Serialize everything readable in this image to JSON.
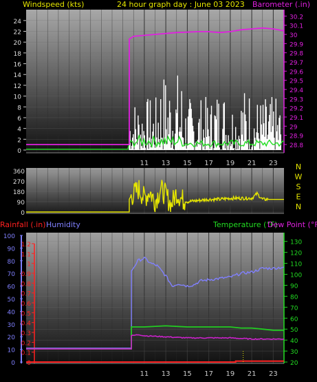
{
  "header": {
    "left": "Windspeed (kts)",
    "center": "24 hour graph day : June 03 2023",
    "right": "Barometer (.in)"
  },
  "mid_header": {
    "left1": "Rainfall (.in)",
    "left2": "Humidity",
    "right1": "Temperature (°F)",
    "right2": "Dew Point (°F)"
  },
  "colors": {
    "wind": "#ffffff",
    "gust_green": "#22dd22",
    "barometer": "#e020e0",
    "direction": "#e6e600",
    "humidity": "#8080ff",
    "temperature": "#22cc22",
    "dewpoint": "#cc22cc",
    "rain": "#ff2020",
    "header_yellow": "#e6e600",
    "header_magenta": "#e020e0",
    "axis_green": "#22dd22"
  },
  "chart_data": [
    {
      "type": "line",
      "name": "wind-barometer",
      "x_ticks": [
        "11",
        "13",
        "15",
        "17",
        "19",
        "21",
        "23"
      ],
      "y_left_ticks": [
        "0",
        "2",
        "4",
        "6",
        "8",
        "10",
        "12",
        "14",
        "16",
        "18",
        "20",
        "22",
        "24"
      ],
      "y_left_range": [
        0,
        25
      ],
      "y_right_ticks": [
        "28.8",
        "28.9",
        "29",
        "29.1",
        "29.2",
        "29.3",
        "29.4",
        "29.5",
        "29.6",
        "29.7",
        "29.8",
        "29.9",
        "30",
        "30.1",
        "30.2"
      ],
      "y_right_range": [
        28.74,
        30.27
      ],
      "series": [
        {
          "axis": "right",
          "x": [
            0,
            9.6,
            9.6,
            10,
            12,
            14,
            16,
            17,
            18,
            19,
            20,
            21,
            22,
            23,
            24
          ],
          "values": [
            28.8,
            28.8,
            29.95,
            29.98,
            30.0,
            30.02,
            30.03,
            30.03,
            30.02,
            30.03,
            30.05,
            30.06,
            30.07,
            30.06,
            30.04
          ]
        }
      ]
    },
    {
      "type": "line",
      "name": "wind-direction",
      "x_ticks": [
        "11",
        "13",
        "15",
        "17",
        "19",
        "21",
        "23"
      ],
      "y_left_ticks": [
        "0",
        "90",
        "180",
        "270",
        "360"
      ],
      "y_left_range": [
        0,
        360
      ],
      "y_right_ticks": [
        "N",
        "W",
        "S",
        "E",
        "N"
      ],
      "series": [
        {
          "x": [
            0,
            9.6,
            9.6,
            10,
            10.5,
            11,
            11.5,
            12,
            12.5,
            13,
            13.5,
            14,
            14.5,
            15,
            16,
            17,
            18,
            19,
            20,
            21,
            21.5,
            22,
            23,
            24
          ],
          "values": [
            0,
            0,
            110,
            160,
            200,
            120,
            180,
            90,
            200,
            150,
            60,
            170,
            110,
            90,
            100,
            110,
            110,
            120,
            120,
            120,
            160,
            110,
            110,
            110
          ]
        }
      ]
    },
    {
      "type": "line",
      "name": "temp-humidity-rain",
      "x_ticks": [
        "11",
        "13",
        "15",
        "17",
        "19",
        "21",
        "23"
      ],
      "humidity_ticks": [
        "0",
        "10",
        "20",
        "30",
        "40",
        "50",
        "60",
        "70",
        "80",
        "90",
        "100"
      ],
      "rain_ticks": [
        "0",
        "0.1",
        "0.2",
        "0.3",
        "0.4",
        "0.5",
        "0.6",
        "0.7",
        "0.8",
        "0.9",
        "1",
        "1.1",
        "1.2"
      ],
      "temp_ticks": [
        "20",
        "30",
        "40",
        "50",
        "60",
        "70",
        "80",
        "90",
        "100",
        "110",
        "120",
        "130"
      ],
      "temp_range": [
        20,
        138
      ],
      "series": [
        {
          "name": "Humidity",
          "x": [
            0,
            9.8,
            9.8,
            10.4,
            11,
            11.6,
            12.2,
            13,
            13.6,
            14.2,
            15,
            15.6,
            16.2,
            17,
            18,
            19,
            20,
            21,
            22,
            23,
            24
          ],
          "values": [
            11,
            11,
            72,
            80,
            82,
            78,
            76,
            68,
            60,
            62,
            60,
            61,
            64,
            65,
            66,
            67,
            70,
            71,
            74,
            74,
            75
          ]
        },
        {
          "name": "Temperature",
          "x": [
            0,
            9.8,
            9.8,
            11,
            13,
            15,
            17,
            19,
            20,
            21,
            22,
            23,
            24
          ],
          "values": [
            32,
            32,
            52,
            52,
            53,
            52,
            52,
            52,
            51,
            51,
            50,
            49,
            49
          ]
        },
        {
          "name": "Dew Point",
          "x": [
            0,
            9.8,
            9.8,
            10.5,
            11,
            13,
            15,
            17,
            19,
            21,
            23,
            24
          ],
          "values": [
            32,
            32,
            44,
            45,
            44,
            43,
            42,
            42,
            42,
            41,
            41,
            41
          ]
        },
        {
          "name": "Rainfall",
          "x": [
            0,
            19.5,
            19.5,
            24
          ],
          "values": [
            0,
            0,
            0.01,
            0.01
          ]
        }
      ]
    }
  ]
}
